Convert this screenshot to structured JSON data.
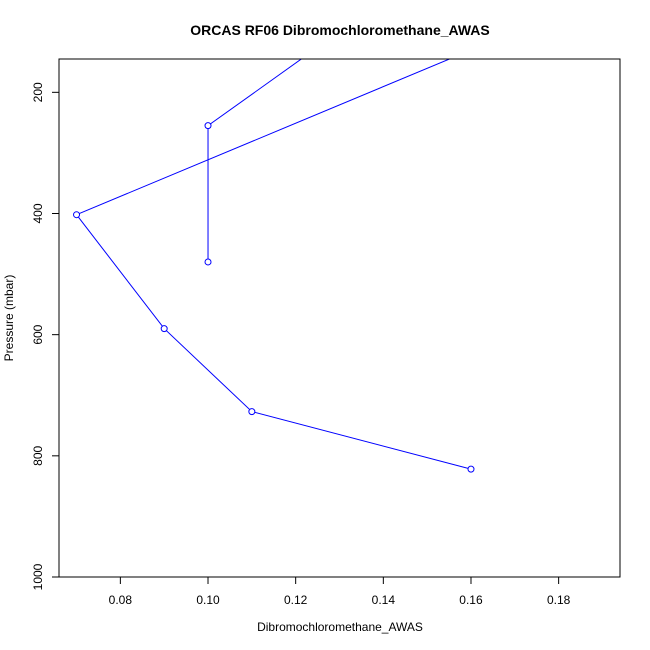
{
  "chart_data": {
    "type": "line",
    "title": "ORCAS RF06 Dibromochloromethane_AWAS",
    "xlabel": "Dibromochloromethane_AWAS",
    "ylabel": "Pressure (mbar)",
    "xlim": [
      0.066,
      0.194
    ],
    "ylim": [
      1000,
      145
    ],
    "x_ticks": [
      0.08,
      0.1,
      0.12,
      0.14,
      0.16,
      0.18
    ],
    "x_tick_labels": [
      "0.08",
      "0.10",
      "0.12",
      "0.14",
      "0.16",
      "0.18"
    ],
    "y_ticks": [
      200,
      400,
      600,
      800,
      1000
    ],
    "y_tick_labels": [
      "200",
      "400",
      "600",
      "800",
      "1000"
    ],
    "grid": false,
    "line_color": "#0000ff",
    "marker": "open-circle",
    "series": [
      {
        "x": [
          0.13,
          0.1,
          0.1
        ],
        "y": [
          100,
          255,
          480
        ]
      },
      {
        "x": [
          0.17,
          0.07,
          0.09,
          0.11,
          0.16
        ],
        "y": [
          100,
          402,
          590,
          727,
          822
        ]
      }
    ]
  }
}
